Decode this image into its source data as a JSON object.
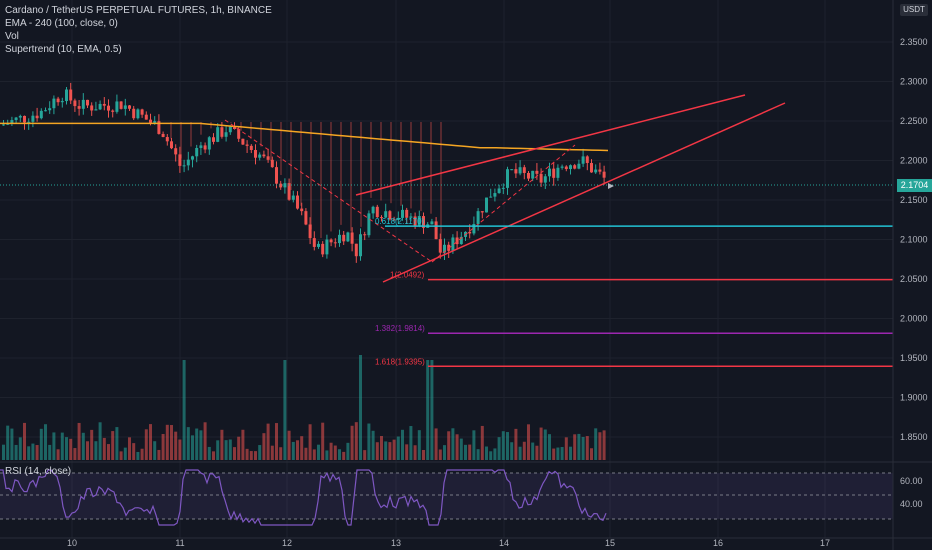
{
  "legend": {
    "symbol": "Cardano / TetherUS PERPETUAL FUTURES, 1h, BINANCE",
    "ema": "EMA - 240 (100, close, 0)",
    "vol": "Vol",
    "supertrend": "Supertrend (10, EMA, 0.5)"
  },
  "rsi_label": "RSI (14, close)",
  "currency": "USDT",
  "current_price": "2.1704",
  "colors": {
    "background": "#131722",
    "bull": "#26a69a",
    "bear": "#ef5350",
    "ema": "#f5a623",
    "wedge": "#f23645",
    "cyan": "#22c3d4",
    "purple": "#9c27b0",
    "rsi": "#7e57c2"
  },
  "chart_data": {
    "type": "candlestick",
    "y_ticks": [
      "2.3500",
      "2.3000",
      "2.2500",
      "2.2000",
      "2.1500",
      "2.1000",
      "2.0500",
      "2.0000",
      "1.9500",
      "1.9000",
      "1.8500"
    ],
    "x_ticks": [
      "10",
      "11",
      "12",
      "13",
      "14",
      "15",
      "16",
      "17"
    ],
    "rsi_ticks": [
      "60.00",
      "40.00"
    ],
    "fib_levels": [
      {
        "label": "0.618(2.1170)",
        "value": 2.117,
        "color": "cyan"
      },
      {
        "label": "1(2.0492)",
        "value": 2.0492,
        "color": "wedge"
      },
      {
        "label": "1.382(1.9814)",
        "value": 1.9814,
        "color": "purple"
      },
      {
        "label": "1.618(1.9395)",
        "value": 1.9395,
        "color": "wedge"
      }
    ]
  }
}
